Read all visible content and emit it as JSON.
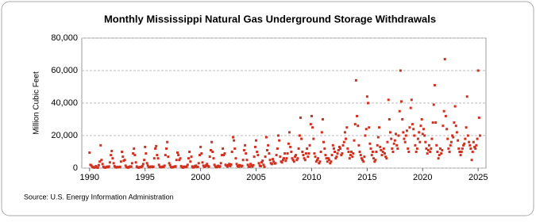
{
  "chart_data": {
    "type": "scatter",
    "title": "Monthly Mississippi Natural  Gas Underground Storage Withdrawals",
    "y_label": "Million Cubic Feet",
    "source": "Source: U.S. Energy Information Administration",
    "xlim": [
      1989.3,
      2025.7
    ],
    "xticks": [
      1990,
      1995,
      2000,
      2005,
      2010,
      2015,
      2020,
      2025
    ],
    "ylim": [
      0,
      80000
    ],
    "yticks": [
      0,
      {
        "value": 20000,
        "label": "20,000"
      },
      {
        "value": 40000,
        "label": "40,000"
      },
      {
        "value": 60000,
        "label": "60,000"
      },
      {
        "value": 80000,
        "label": "80,000"
      }
    ],
    "grid": true,
    "color": "#d2301e",
    "x": [
      1990,
      1990.08,
      1990.17,
      1990.25,
      1990.33,
      1990.42,
      1990.5,
      1990.58,
      1990.67,
      1990.75,
      1990.83,
      1990.92,
      1991,
      1991.08,
      1991.17,
      1991.25,
      1991.33,
      1991.42,
      1991.5,
      1991.58,
      1991.67,
      1991.75,
      1991.83,
      1991.92,
      1992,
      1992.08,
      1992.17,
      1992.25,
      1992.33,
      1992.42,
      1992.5,
      1992.58,
      1992.67,
      1992.75,
      1992.83,
      1992.92,
      1993,
      1993.08,
      1993.17,
      1993.25,
      1993.33,
      1993.42,
      1993.5,
      1993.58,
      1993.67,
      1993.75,
      1993.83,
      1993.92,
      1994,
      1994.08,
      1994.17,
      1994.25,
      1994.33,
      1994.42,
      1994.5,
      1994.58,
      1994.67,
      1994.75,
      1994.83,
      1994.92,
      1995,
      1995.08,
      1995.17,
      1995.25,
      1995.33,
      1995.42,
      1995.5,
      1995.58,
      1995.67,
      1995.75,
      1995.83,
      1995.92,
      1996,
      1996.08,
      1996.17,
      1996.25,
      1996.33,
      1996.42,
      1996.5,
      1996.58,
      1996.67,
      1996.75,
      1996.83,
      1996.92,
      1997,
      1997.08,
      1997.17,
      1997.25,
      1997.33,
      1997.42,
      1997.5,
      1997.58,
      1997.67,
      1997.75,
      1997.83,
      1997.92,
      1998,
      1998.08,
      1998.17,
      1998.25,
      1998.33,
      1998.42,
      1998.5,
      1998.58,
      1998.67,
      1998.75,
      1998.83,
      1998.92,
      1999,
      1999.08,
      1999.17,
      1999.25,
      1999.33,
      1999.42,
      1999.5,
      1999.58,
      1999.67,
      1999.75,
      1999.83,
      1999.92,
      2000,
      2000.08,
      2000.17,
      2000.25,
      2000.33,
      2000.42,
      2000.5,
      2000.58,
      2000.67,
      2000.75,
      2000.83,
      2000.92,
      2001,
      2001.08,
      2001.17,
      2001.25,
      2001.33,
      2001.42,
      2001.5,
      2001.58,
      2001.67,
      2001.75,
      2001.83,
      2001.92,
      2002,
      2002.08,
      2002.17,
      2002.25,
      2002.33,
      2002.42,
      2002.5,
      2002.58,
      2002.67,
      2002.75,
      2002.83,
      2002.92,
      2003,
      2003.08,
      2003.17,
      2003.25,
      2003.33,
      2003.42,
      2003.5,
      2003.58,
      2003.67,
      2003.75,
      2003.83,
      2003.92,
      2004,
      2004.08,
      2004.17,
      2004.25,
      2004.33,
      2004.42,
      2004.5,
      2004.58,
      2004.67,
      2004.75,
      2004.83,
      2004.92,
      2005,
      2005.08,
      2005.17,
      2005.25,
      2005.33,
      2005.42,
      2005.5,
      2005.58,
      2005.67,
      2005.75,
      2005.83,
      2005.92,
      2006,
      2006.08,
      2006.17,
      2006.25,
      2006.33,
      2006.42,
      2006.5,
      2006.58,
      2006.67,
      2006.75,
      2006.83,
      2006.92,
      2007,
      2007.08,
      2007.17,
      2007.25,
      2007.33,
      2007.42,
      2007.5,
      2007.58,
      2007.67,
      2007.75,
      2007.83,
      2007.92,
      2008,
      2008.08,
      2008.17,
      2008.25,
      2008.33,
      2008.42,
      2008.5,
      2008.58,
      2008.67,
      2008.75,
      2008.83,
      2008.92,
      2009,
      2009.08,
      2009.17,
      2009.25,
      2009.33,
      2009.42,
      2009.5,
      2009.58,
      2009.67,
      2009.75,
      2009.83,
      2009.92,
      2010,
      2010.08,
      2010.17,
      2010.25,
      2010.33,
      2010.42,
      2010.5,
      2010.58,
      2010.67,
      2010.75,
      2010.83,
      2010.92,
      2011,
      2011.08,
      2011.17,
      2011.25,
      2011.33,
      2011.42,
      2011.5,
      2011.58,
      2011.67,
      2011.75,
      2011.83,
      2011.92,
      2012,
      2012.08,
      2012.17,
      2012.25,
      2012.33,
      2012.42,
      2012.5,
      2012.58,
      2012.67,
      2012.75,
      2012.83,
      2012.92,
      2013,
      2013.08,
      2013.17,
      2013.25,
      2013.33,
      2013.42,
      2013.5,
      2013.58,
      2013.67,
      2013.75,
      2013.83,
      2013.92,
      2014,
      2014.08,
      2014.17,
      2014.25,
      2014.33,
      2014.42,
      2014.5,
      2014.58,
      2014.67,
      2014.75,
      2014.83,
      2014.92,
      2015,
      2015.08,
      2015.17,
      2015.25,
      2015.33,
      2015.42,
      2015.5,
      2015.58,
      2015.67,
      2015.75,
      2015.83,
      2015.92,
      2016,
      2016.08,
      2016.17,
      2016.25,
      2016.33,
      2016.42,
      2016.5,
      2016.58,
      2016.67,
      2016.75,
      2016.83,
      2016.92,
      2017,
      2017.08,
      2017.17,
      2017.25,
      2017.33,
      2017.42,
      2017.5,
      2017.58,
      2017.67,
      2017.75,
      2017.83,
      2017.92,
      2018,
      2018.08,
      2018.17,
      2018.25,
      2018.33,
      2018.42,
      2018.5,
      2018.58,
      2018.67,
      2018.75,
      2018.83,
      2018.92,
      2019,
      2019.08,
      2019.17,
      2019.25,
      2019.33,
      2019.42,
      2019.5,
      2019.58,
      2019.67,
      2019.75,
      2019.83,
      2019.92,
      2020,
      2020.08,
      2020.17,
      2020.25,
      2020.33,
      2020.42,
      2020.5,
      2020.58,
      2020.67,
      2020.75,
      2020.83,
      2020.92,
      2021,
      2021.08,
      2021.17,
      2021.25,
      2021.33,
      2021.42,
      2021.5,
      2021.58,
      2021.67,
      2021.75,
      2021.83,
      2021.92,
      2022,
      2022.08,
      2022.17,
      2022.25,
      2022.33,
      2022.42,
      2022.5,
      2022.58,
      2022.67,
      2022.75,
      2022.83,
      2022.92,
      2023,
      2023.08,
      2023.17,
      2023.25,
      2023.33,
      2023.42,
      2023.5,
      2023.58,
      2023.67,
      2023.75,
      2023.83,
      2023.92,
      2024,
      2024.08,
      2024.17,
      2024.25,
      2024.33,
      2024.42,
      2024.5,
      2024.58,
      2024.67,
      2024.75,
      2024.83,
      2024.92,
      2025,
      2025.08,
      2025.17
    ],
    "values": [
      9500,
      2000,
      1500,
      800,
      500,
      300,
      600,
      1200,
      400,
      300,
      1800,
      4000,
      14000,
      5000,
      2500,
      800,
      400,
      300,
      500,
      900,
      600,
      1000,
      3500,
      8000,
      10500,
      6000,
      3000,
      1200,
      500,
      400,
      700,
      600,
      500,
      800,
      4000,
      10000,
      7000,
      4500,
      5000,
      1500,
      600,
      400,
      300,
      800,
      1000,
      900,
      3000,
      9000,
      12000,
      8000,
      3500,
      1000,
      500,
      300,
      400,
      700,
      600,
      1200,
      2500,
      5000,
      13000,
      9000,
      3000,
      1500,
      600,
      500,
      800,
      1000,
      700,
      900,
      6000,
      12000,
      13500,
      8000,
      6000,
      2000,
      800,
      500,
      600,
      900,
      700,
      1500,
      8000,
      12000,
      16000,
      7000,
      3000,
      1800,
      700,
      400,
      500,
      800,
      900,
      1100,
      5000,
      9500,
      8000,
      5000,
      6000,
      1200,
      500,
      300,
      900,
      700,
      600,
      1000,
      2000,
      6000,
      10000,
      4000,
      7000,
      1000,
      400,
      600,
      1200,
      1500,
      800,
      700,
      3000,
      8000,
      13000,
      9000,
      3500,
      1500,
      800,
      1000,
      1700,
      2500,
      1200,
      900,
      7000,
      11000,
      16000,
      10000,
      6000,
      2000,
      1000,
      500,
      900,
      1400,
      800,
      1100,
      3000,
      8000,
      12000,
      8000,
      9000,
      2000,
      1500,
      1000,
      1800,
      2500,
      1200,
      2200,
      10000,
      19000,
      17000,
      12000,
      6000,
      2500,
      1200,
      900,
      1800,
      1500,
      1000,
      1400,
      5000,
      11000,
      14000,
      9000,
      5000,
      2000,
      1000,
      800,
      2500,
      1500,
      1000,
      1800,
      7000,
      13000,
      17000,
      10000,
      8000,
      3000,
      1500,
      1200,
      3500,
      4500,
      2000,
      800,
      7000,
      19000,
      11000,
      14000,
      9000,
      5000,
      3000,
      2500,
      5500,
      4000,
      2800,
      3000,
      8000,
      12000,
      20000,
      17000,
      7000,
      4000,
      3500,
      5000,
      6000,
      9000,
      4500,
      6000,
      9000,
      15000,
      22000,
      13000,
      10000,
      6000,
      5000,
      4000,
      7000,
      8000,
      5000,
      6000,
      12000,
      20000,
      31000,
      18000,
      10000,
      8000,
      6000,
      5000,
      9000,
      12000,
      7000,
      9000,
      14000,
      27000,
      32000,
      25000,
      18000,
      9000,
      7000,
      4000,
      5000,
      6000,
      3000,
      4000,
      10000,
      22000,
      30000,
      16000,
      12000,
      8000,
      6000,
      4000,
      6000,
      5000,
      3000,
      4000,
      8000,
      14000,
      12000,
      10000,
      6000,
      7000,
      9000,
      11000,
      13000,
      12000,
      8000,
      9000,
      14000,
      16000,
      22000,
      18000,
      25000,
      12000,
      10000,
      6000,
      8000,
      10000,
      7000,
      9000,
      17000,
      27000,
      54000,
      32000,
      26000,
      14000,
      10000,
      8000,
      6000,
      5000,
      4000,
      7000,
      20000,
      24000,
      44000,
      40000,
      25000,
      15000,
      12000,
      8000,
      10000,
      6000,
      4000,
      5000,
      10000,
      14000,
      19000,
      25000,
      13000,
      11000,
      8000,
      10000,
      12000,
      9000,
      7000,
      6000,
      16000,
      42000,
      30000,
      22000,
      18000,
      12000,
      10000,
      15000,
      17000,
      21000,
      14000,
      12000,
      20000,
      35000,
      60000,
      41000,
      30000,
      22000,
      18000,
      16000,
      20000,
      23000,
      12000,
      10000,
      25000,
      37000,
      42000,
      27000,
      24000,
      20000,
      14000,
      10000,
      12000,
      18000,
      22000,
      16000,
      26000,
      30000,
      21000,
      24000,
      20000,
      16000,
      12000,
      9000,
      11000,
      14000,
      10000,
      12000,
      18000,
      28000,
      39000,
      51000,
      28000,
      14000,
      10000,
      6000,
      8000,
      12000,
      9000,
      11000,
      26000,
      35000,
      67000,
      32000,
      24000,
      18000,
      12000,
      10000,
      14000,
      16000,
      20000,
      19000,
      28000,
      38000,
      26000,
      22000,
      17000,
      12000,
      10000,
      8000,
      10000,
      12000,
      14000,
      15000,
      18000,
      25000,
      44000,
      20000,
      16000,
      14000,
      12000,
      5000,
      10000,
      16000,
      13000,
      12000,
      14000,
      18000,
      60000,
      31000,
      20000
    ]
  }
}
